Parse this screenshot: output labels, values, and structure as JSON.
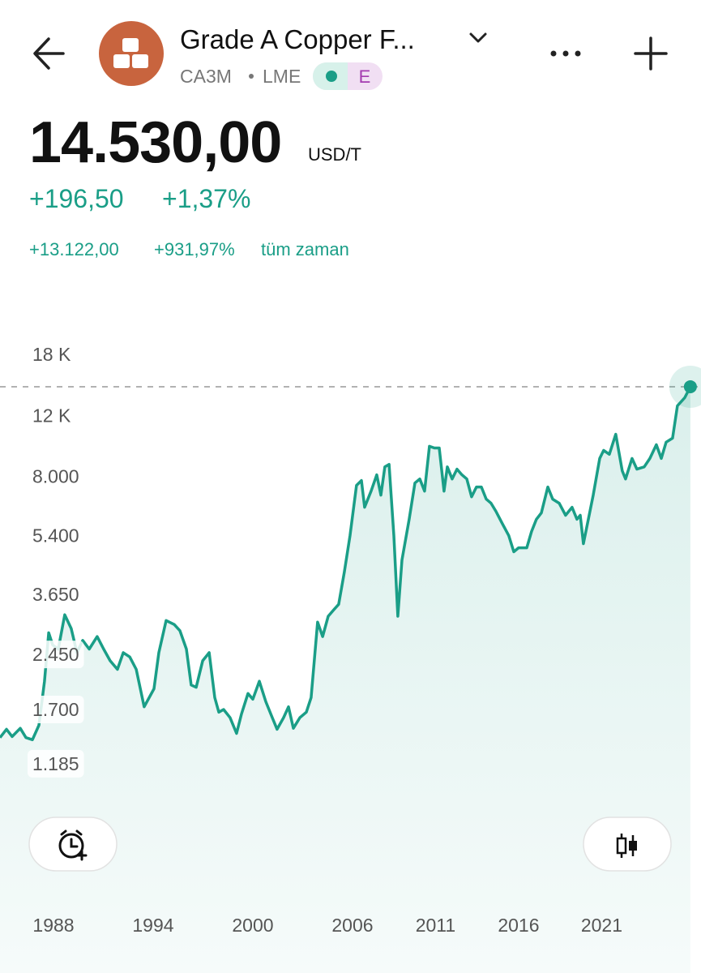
{
  "header": {
    "title": "Grade A Copper F...",
    "symbol": "CA3M",
    "exchange": "LME",
    "badge": "E"
  },
  "quote": {
    "price": "14.530,00",
    "unit": "USD/T",
    "change": "+196,50",
    "change_percent": "+1,37%",
    "all_time_change": "+13.122,00",
    "all_time_percent": "+931,97%",
    "all_time_label": "tüm zaman"
  },
  "chart_data": {
    "type": "line",
    "log_scale": true,
    "color": "#1a9e87",
    "grid": false,
    "xlim": [
      1984.78,
      2026.98
    ],
    "xticks": [
      1988,
      1994,
      2000,
      2006,
      2011,
      2016,
      2021
    ],
    "ylim": [
      500,
      22000
    ],
    "yticks": [
      {
        "value": 18000,
        "label": "18 K"
      },
      {
        "value": 12000,
        "label": "12 K"
      },
      {
        "value": 8000,
        "label": "8.000"
      },
      {
        "value": 5400,
        "label": "5.400"
      },
      {
        "value": 3650,
        "label": "3.650"
      },
      {
        "value": 2450,
        "label": "2.450"
      },
      {
        "value": 1700,
        "label": "1.700"
      },
      {
        "value": 1185,
        "label": "1.185"
      }
    ],
    "x": [
      1984.78,
      1985.17,
      1985.51,
      1986.0,
      1986.34,
      1986.73,
      1987.12,
      1987.46,
      1987.71,
      1987.95,
      1988.29,
      1988.68,
      1989.07,
      1989.41,
      1989.76,
      1990.15,
      1990.63,
      1991.02,
      1991.41,
      1991.85,
      1992.2,
      1992.59,
      1992.98,
      1993.46,
      1994.05,
      1994.34,
      1994.78,
      1995.27,
      1995.61,
      1996.0,
      1996.29,
      1996.59,
      1996.98,
      1997.37,
      1997.71,
      1997.95,
      1998.24,
      1998.63,
      1999.02,
      1999.32,
      1999.71,
      2000.0,
      2000.39,
      2000.78,
      2001.17,
      2001.46,
      2001.85,
      2002.15,
      2002.44,
      2002.83,
      2003.22,
      2003.51,
      2003.9,
      2004.2,
      2004.54,
      2004.88,
      2005.17,
      2005.51,
      2005.85,
      2006.24,
      2006.54,
      2006.73,
      2007.12,
      2007.46,
      2007.71,
      2007.95,
      2008.2,
      2008.49,
      2008.73,
      2008.98,
      2009.41,
      2009.76,
      2010.05,
      2010.34,
      2010.63,
      2010.93,
      2011.22,
      2011.51,
      2011.71,
      2012.0,
      2012.29,
      2012.59,
      2012.88,
      2013.17,
      2013.46,
      2013.76,
      2014.05,
      2014.34,
      2014.63,
      2015.02,
      2015.41,
      2015.71,
      2016.0,
      2016.49,
      2016.78,
      2017.07,
      2017.37,
      2017.76,
      2018.05,
      2018.44,
      2018.83,
      2019.22,
      2019.51,
      2019.71,
      2019.9,
      2020.2,
      2020.49,
      2020.88,
      2021.12,
      2021.46,
      2021.85,
      2022.24,
      2022.44,
      2022.83,
      2023.12,
      2023.56,
      2023.9,
      2024.29,
      2024.59,
      2024.88,
      2025.27,
      2025.56,
      2026.0,
      2026.34
    ],
    "values": [
      1410,
      1490,
      1420,
      1500,
      1410,
      1390,
      1530,
      2050,
      2830,
      2610,
      2540,
      3190,
      2910,
      2480,
      2690,
      2540,
      2760,
      2540,
      2350,
      2220,
      2480,
      2410,
      2220,
      1730,
      1950,
      2480,
      3070,
      2990,
      2870,
      2540,
      2000,
      1970,
      2350,
      2480,
      1840,
      1670,
      1700,
      1610,
      1450,
      1650,
      1890,
      1820,
      2050,
      1790,
      1610,
      1490,
      1610,
      1730,
      1500,
      1610,
      1670,
      1840,
      3040,
      2760,
      3160,
      3300,
      3420,
      4240,
      5400,
      7540,
      7790,
      6520,
      7260,
      8090,
      7070,
      8530,
      8670,
      5400,
      3160,
      4590,
      6020,
      7660,
      7870,
      7260,
      9780,
      9670,
      9670,
      7260,
      8530,
      7870,
      8400,
      8090,
      7870,
      6990,
      7460,
      7460,
      6880,
      6700,
      6350,
      5850,
      5400,
      4850,
      4980,
      4980,
      5550,
      6020,
      6280,
      7460,
      6880,
      6700,
      6180,
      6520,
      6020,
      6180,
      5120,
      6020,
      7070,
      9020,
      9520,
      9270,
      10600,
      8310,
      7870,
      9020,
      8400,
      8530,
      9020,
      9880,
      9020,
      10050,
      10320,
      12800,
      13510,
      14530
    ]
  }
}
